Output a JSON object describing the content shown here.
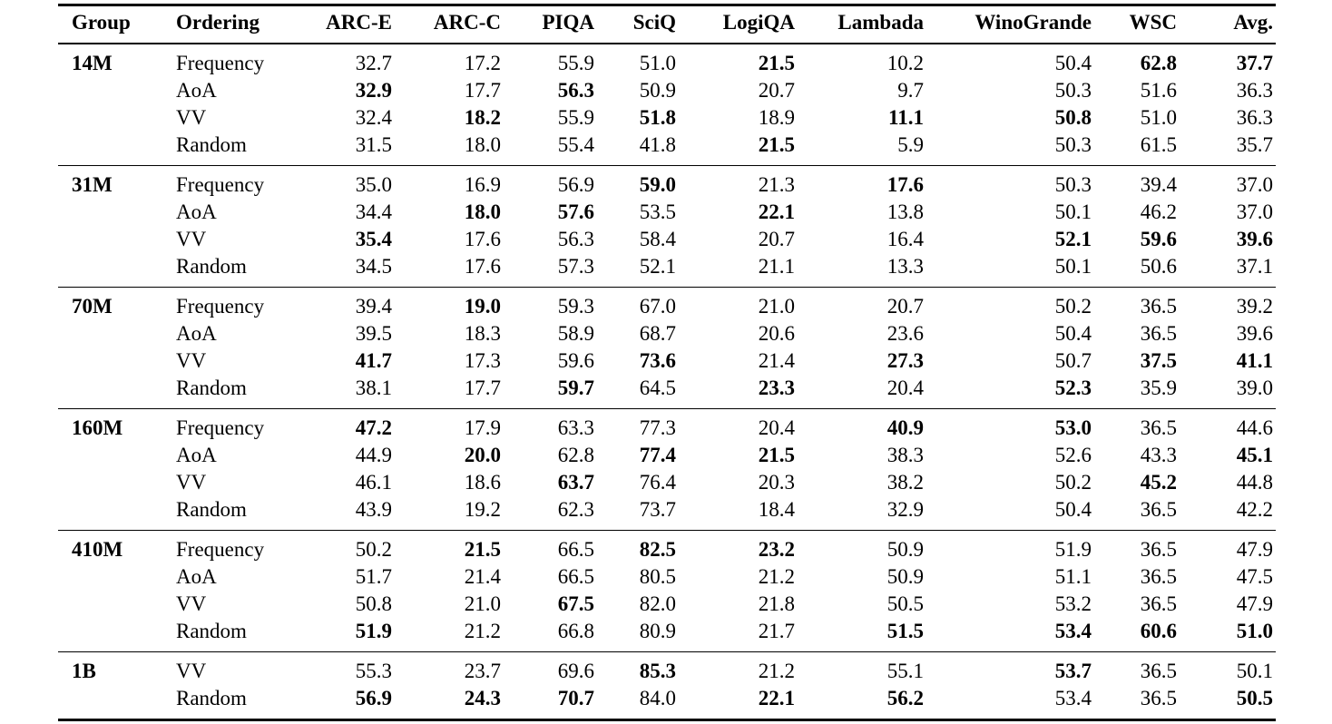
{
  "table": {
    "columns": [
      {
        "label": "Group",
        "align": "left"
      },
      {
        "label": "Ordering",
        "align": "left"
      },
      {
        "label": "ARC-E",
        "align": "right"
      },
      {
        "label": "ARC-C",
        "align": "right"
      },
      {
        "label": "PIQA",
        "align": "right"
      },
      {
        "label": "SciQ",
        "align": "right"
      },
      {
        "label": "LogiQA",
        "align": "right"
      },
      {
        "label": "Lambada",
        "align": "right"
      },
      {
        "label": "WinoGrande",
        "align": "right"
      },
      {
        "label": "WSC",
        "align": "right"
      },
      {
        "label": "Avg.",
        "align": "right"
      }
    ],
    "groups": [
      {
        "label": "14M",
        "rows": [
          {
            "ordering": "Frequency",
            "cells": [
              "32.7",
              "17.2",
              "55.9",
              "51.0",
              "21.5",
              "10.2",
              "50.4",
              "62.8",
              "37.7"
            ],
            "bold": [
              4,
              7,
              8
            ]
          },
          {
            "ordering": "AoA",
            "cells": [
              "32.9",
              "17.7",
              "56.3",
              "50.9",
              "20.7",
              "9.7",
              "50.3",
              "51.6",
              "36.3"
            ],
            "bold": [
              0,
              2
            ]
          },
          {
            "ordering": "VV",
            "cells": [
              "32.4",
              "18.2",
              "55.9",
              "51.8",
              "18.9",
              "11.1",
              "50.8",
              "51.0",
              "36.3"
            ],
            "bold": [
              1,
              3,
              5,
              6
            ]
          },
          {
            "ordering": "Random",
            "cells": [
              "31.5",
              "18.0",
              "55.4",
              "41.8",
              "21.5",
              "5.9",
              "50.3",
              "61.5",
              "35.7"
            ],
            "bold": [
              4
            ]
          }
        ]
      },
      {
        "label": "31M",
        "rows": [
          {
            "ordering": "Frequency",
            "cells": [
              "35.0",
              "16.9",
              "56.9",
              "59.0",
              "21.3",
              "17.6",
              "50.3",
              "39.4",
              "37.0"
            ],
            "bold": [
              3,
              5
            ]
          },
          {
            "ordering": "AoA",
            "cells": [
              "34.4",
              "18.0",
              "57.6",
              "53.5",
              "22.1",
              "13.8",
              "50.1",
              "46.2",
              "37.0"
            ],
            "bold": [
              1,
              2,
              4
            ]
          },
          {
            "ordering": "VV",
            "cells": [
              "35.4",
              "17.6",
              "56.3",
              "58.4",
              "20.7",
              "16.4",
              "52.1",
              "59.6",
              "39.6"
            ],
            "bold": [
              0,
              6,
              7,
              8
            ]
          },
          {
            "ordering": "Random",
            "cells": [
              "34.5",
              "17.6",
              "57.3",
              "52.1",
              "21.1",
              "13.3",
              "50.1",
              "50.6",
              "37.1"
            ],
            "bold": []
          }
        ]
      },
      {
        "label": "70M",
        "rows": [
          {
            "ordering": "Frequency",
            "cells": [
              "39.4",
              "19.0",
              "59.3",
              "67.0",
              "21.0",
              "20.7",
              "50.2",
              "36.5",
              "39.2"
            ],
            "bold": [
              1
            ]
          },
          {
            "ordering": "AoA",
            "cells": [
              "39.5",
              "18.3",
              "58.9",
              "68.7",
              "20.6",
              "23.6",
              "50.4",
              "36.5",
              "39.6"
            ],
            "bold": []
          },
          {
            "ordering": "VV",
            "cells": [
              "41.7",
              "17.3",
              "59.6",
              "73.6",
              "21.4",
              "27.3",
              "50.7",
              "37.5",
              "41.1"
            ],
            "bold": [
              0,
              3,
              5,
              7,
              8
            ]
          },
          {
            "ordering": "Random",
            "cells": [
              "38.1",
              "17.7",
              "59.7",
              "64.5",
              "23.3",
              "20.4",
              "52.3",
              "35.9",
              "39.0"
            ],
            "bold": [
              2,
              4,
              6
            ]
          }
        ]
      },
      {
        "label": "160M",
        "rows": [
          {
            "ordering": "Frequency",
            "cells": [
              "47.2",
              "17.9",
              "63.3",
              "77.3",
              "20.4",
              "40.9",
              "53.0",
              "36.5",
              "44.6"
            ],
            "bold": [
              0,
              5,
              6
            ]
          },
          {
            "ordering": "AoA",
            "cells": [
              "44.9",
              "20.0",
              "62.8",
              "77.4",
              "21.5",
              "38.3",
              "52.6",
              "43.3",
              "45.1"
            ],
            "bold": [
              1,
              3,
              4,
              8
            ]
          },
          {
            "ordering": "VV",
            "cells": [
              "46.1",
              "18.6",
              "63.7",
              "76.4",
              "20.3",
              "38.2",
              "50.2",
              "45.2",
              "44.8"
            ],
            "bold": [
              2,
              7
            ]
          },
          {
            "ordering": "Random",
            "cells": [
              "43.9",
              "19.2",
              "62.3",
              "73.7",
              "18.4",
              "32.9",
              "50.4",
              "36.5",
              "42.2"
            ],
            "bold": []
          }
        ]
      },
      {
        "label": "410M",
        "rows": [
          {
            "ordering": "Frequency",
            "cells": [
              "50.2",
              "21.5",
              "66.5",
              "82.5",
              "23.2",
              "50.9",
              "51.9",
              "36.5",
              "47.9"
            ],
            "bold": [
              1,
              3,
              4
            ]
          },
          {
            "ordering": "AoA",
            "cells": [
              "51.7",
              "21.4",
              "66.5",
              "80.5",
              "21.2",
              "50.9",
              "51.1",
              "36.5",
              "47.5"
            ],
            "bold": []
          },
          {
            "ordering": "VV",
            "cells": [
              "50.8",
              "21.0",
              "67.5",
              "82.0",
              "21.8",
              "50.5",
              "53.2",
              "36.5",
              "47.9"
            ],
            "bold": [
              2
            ]
          },
          {
            "ordering": "Random",
            "cells": [
              "51.9",
              "21.2",
              "66.8",
              "80.9",
              "21.7",
              "51.5",
              "53.4",
              "60.6",
              "51.0"
            ],
            "bold": [
              0,
              5,
              6,
              7,
              8
            ]
          }
        ]
      },
      {
        "label": "1B",
        "rows": [
          {
            "ordering": "VV",
            "cells": [
              "55.3",
              "23.7",
              "69.6",
              "85.3",
              "21.2",
              "55.1",
              "53.7",
              "36.5",
              "50.1"
            ],
            "bold": [
              3,
              6
            ]
          },
          {
            "ordering": "Random",
            "cells": [
              "56.9",
              "24.3",
              "70.7",
              "84.0",
              "22.1",
              "56.2",
              "53.4",
              "36.5",
              "50.5"
            ],
            "bold": [
              0,
              1,
              2,
              4,
              5,
              8
            ]
          }
        ]
      }
    ]
  }
}
